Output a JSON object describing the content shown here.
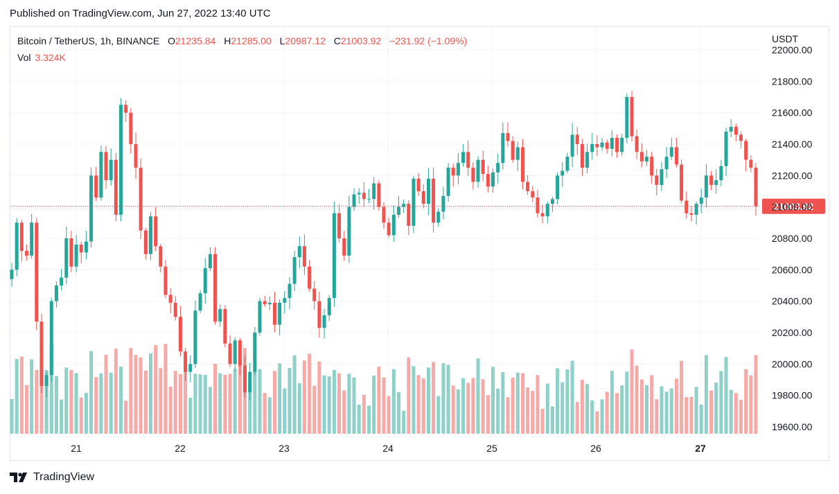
{
  "header": {
    "published": "Published on TradingView.com, Jun 27, 2022 13:40 UTC"
  },
  "legend": {
    "symbol": "Bitcoin / TetherUS, 1h, BINANCE",
    "o_label": "O",
    "o_value": "21235.84",
    "h_label": "H",
    "h_value": "21285.00",
    "l_label": "L",
    "l_value": "20987.12",
    "c_label": "C",
    "c_value": "21003.92",
    "change": "−231.92 (−1.09%)",
    "vol_label": "Vol",
    "vol_value": "3.324K"
  },
  "axis": {
    "unit": "USDT"
  },
  "footer": {
    "brand": "TradingView",
    "logo_text": "17"
  },
  "colors": {
    "up": "#26a69a",
    "down": "#ef5350",
    "up_vol": "#8fd0c8",
    "down_vol": "#f5aaa7",
    "grid": "#f0f3fa",
    "price_line": "#ef5350"
  },
  "chart_data": {
    "type": "candlestick",
    "ylim": [
      19550,
      22050
    ],
    "yticks": [
      19600,
      19800,
      20000,
      20200,
      20400,
      20600,
      20800,
      21000,
      21200,
      21400,
      21600,
      21800,
      22000
    ],
    "ytick_labels": [
      "19600.00",
      "19800.00",
      "20000.00",
      "20200.00",
      "20400.00",
      "20600.00",
      "20800.00",
      "21000.00",
      "21200.00",
      "21400.00",
      "21600.00",
      "21800.00",
      "22000.00"
    ],
    "xtick_labels": [
      "21",
      "22",
      "23",
      "24",
      "25",
      "26",
      "27"
    ],
    "last_price": 21003.92,
    "last_price_label": "21003.92",
    "closes": [
      20600,
      20900,
      20720,
      20690,
      20900,
      20270,
      19860,
      19930,
      20400,
      20500,
      20550,
      20800,
      20620,
      20760,
      20710,
      20780,
      21200,
      21060,
      21350,
      21170,
      21300,
      20950,
      21650,
      21600,
      21400,
      21250,
      20850,
      20700,
      20940,
      20750,
      20620,
      20440,
      20390,
      20300,
      20080,
      19950,
      20000,
      20340,
      20450,
      20610,
      20700,
      20270,
      20350,
      20130,
      20000,
      20150,
      19990,
      19820,
      19950,
      20200,
      20400,
      20380,
      20390,
      20250,
      20390,
      20420,
      20510,
      20680,
      20750,
      20620,
      20480,
      20400,
      20230,
      20310,
      20420,
      20960,
      20800,
      20690,
      21000,
      21080,
      21090,
      21050,
      21050,
      21150,
      21000,
      20900,
      20820,
      20950,
      21000,
      21020,
      20880,
      21180,
      21100,
      21020,
      21180,
      20900,
      20970,
      21070,
      21250,
      21200,
      21280,
      21350,
      21250,
      21160,
      21300,
      21210,
      21130,
      21220,
      21280,
      21470,
      21420,
      21300,
      21380,
      21160,
      21100,
      21060,
      20960,
      20940,
      21020,
      21050,
      21200,
      21230,
      21320,
      21460,
      21400,
      21250,
      21350,
      21400,
      21380,
      21410,
      21370,
      21440,
      21350,
      21440,
      21700,
      21450,
      21350,
      21290,
      21320,
      21200,
      21140,
      21240,
      21320,
      21380,
      21270,
      21040,
      20960,
      20950,
      21020,
      21060,
      21200,
      21140,
      21170,
      21260,
      21480,
      21510,
      21460,
      21420,
      21300,
      21250,
      21003.92
    ]
  }
}
